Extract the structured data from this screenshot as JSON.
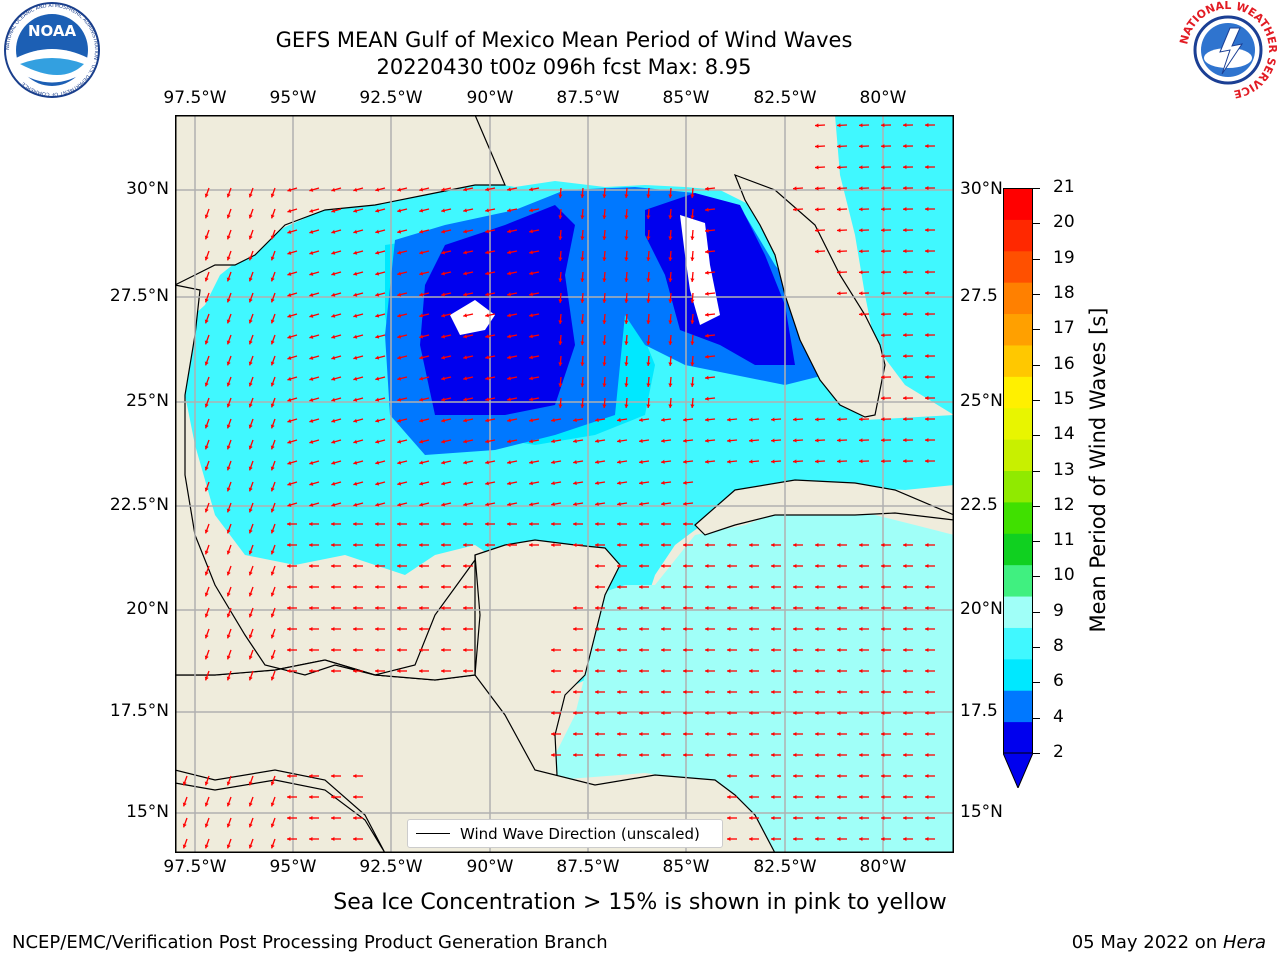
{
  "header": {
    "title_line1": "GEFS MEAN Gulf of Mexico Mean Period of Wind Waves",
    "title_line2": "20220430 t00z 096h fcst   Max: 8.95"
  },
  "logos": {
    "noaa_text": "NOAA",
    "noaa_ring_text": "NATIONAL OCEANIC AND ATMOSPHERIC ADMINISTRATION · U.S. DEPARTMENT OF COMMERCE",
    "nws_ring_text": "NATIONAL WEATHER SERVICE"
  },
  "map": {
    "lon_labels": [
      "97.5°W",
      "95°W",
      "92.5°W",
      "90°W",
      "87.5°W",
      "85°W",
      "82.5°W",
      "80°W"
    ],
    "lat_labels_left": [
      "30°N",
      "27.5°N",
      "25°N",
      "22.5°N",
      "20°N",
      "17.5°N",
      "15°N"
    ],
    "lat_labels_right": [
      "30°N",
      "27.5",
      "25°N",
      "22.5",
      "20°N",
      "17.5",
      "15°N"
    ],
    "legend_label": "Wind Wave Direction (unscaled)",
    "colors": {
      "land": "#efecdc",
      "coast": "#000000",
      "grid": "#b0b0b0",
      "arrow": "#ff0000",
      "missing": "#ffffff"
    }
  },
  "colorbar": {
    "label": "Mean Period of Wind Waves [s]",
    "tick_labels": [
      "21",
      "20",
      "19",
      "18",
      "17",
      "16",
      "15",
      "14",
      "13",
      "12",
      "11",
      "10",
      "9",
      "8",
      "6",
      "4",
      "2"
    ],
    "bin_colors": [
      "#0000ee",
      "#0078ff",
      "#00e8ff",
      "#40f8ff",
      "#a0fff8",
      "#40f080",
      "#10d020",
      "#40e000",
      "#90ea00",
      "#c8f000",
      "#e8f500",
      "#fff000",
      "#ffc800",
      "#ffa000",
      "#ff8000",
      "#ff5000",
      "#ff2800",
      "#ff0000"
    ],
    "extend_color": "#0000ee"
  },
  "caption": "Sea Ice Concentration > 15% is shown in pink to yellow",
  "footer": {
    "left": "NCEP/EMC/Verification Post Processing Product Generation Branch",
    "right_prefix": "05 May 2022 on ",
    "right_host": "Hera"
  }
}
